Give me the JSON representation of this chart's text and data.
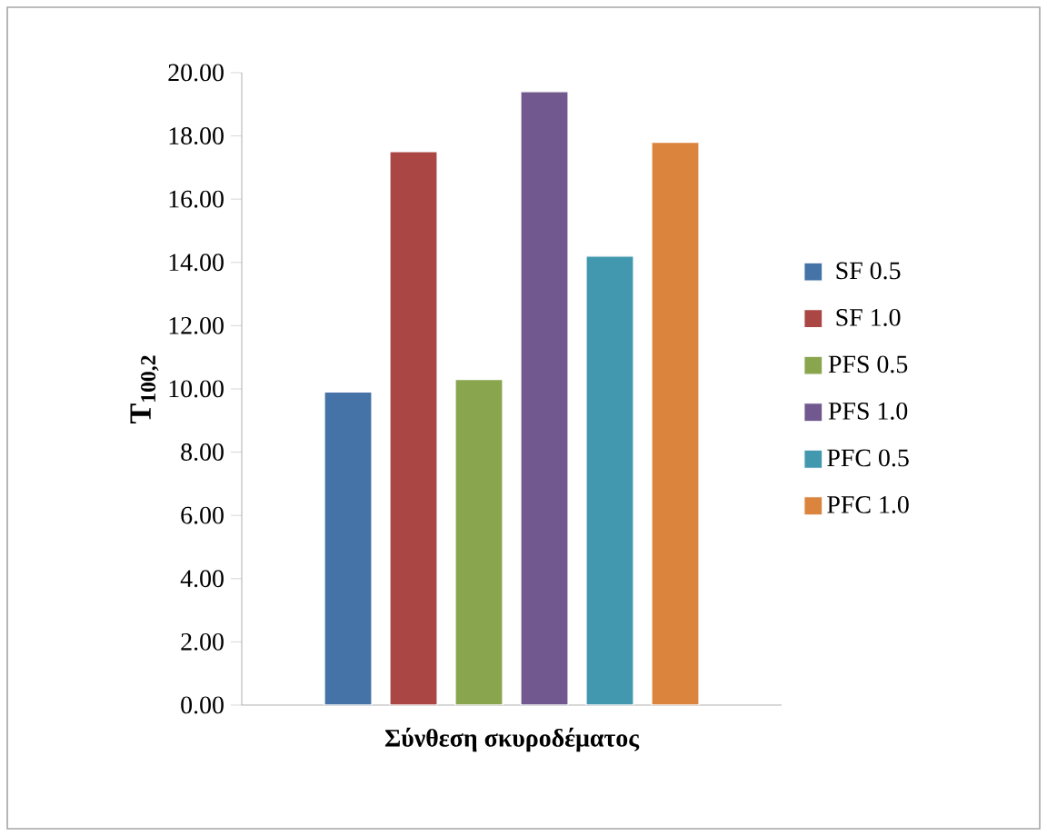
{
  "chart_data": {
    "type": "bar",
    "ylabel": "T$_{100,2}$",
    "xlabel": "Σύνθεση σκυροδέματος",
    "categories": [
      null
    ],
    "series": [
      {
        "name": "SF 0.5",
        "color": "#4572a7",
        "values": [
          9.9
        ]
      },
      {
        "name": "SF 1.0",
        "color": "#aa4643",
        "values": [
          17.5
        ]
      },
      {
        "name": "PFS 0.5",
        "color": "#89a54e",
        "values": [
          10.3
        ]
      },
      {
        "name": "PFS 1.0",
        "color": "#71588f",
        "values": [
          19.4
        ]
      },
      {
        "name": "PFC 0.5",
        "color": "#4198af",
        "values": [
          14.2
        ]
      },
      {
        "name": "PFC 1.0",
        "color": "#db843d",
        "values": [
          17.8
        ]
      }
    ],
    "ylim": [
      0,
      20
    ],
    "yticks": [
      {
        "value": 0,
        "label": "0.00"
      },
      {
        "value": 2,
        "label": "2.00"
      },
      {
        "value": 4,
        "label": "4.00"
      },
      {
        "value": 6,
        "label": "6.00"
      },
      {
        "value": 8,
        "label": "8.00"
      },
      {
        "value": 10,
        "label": "10.00"
      },
      {
        "value": 12,
        "label": "12.00"
      },
      {
        "value": 14,
        "label": "14.00"
      },
      {
        "value": 16,
        "label": "16.00"
      },
      {
        "value": 18,
        "label": "18.00"
      },
      {
        "value": 20,
        "label": "20.00"
      }
    ],
    "legend": "right",
    "grid": false
  }
}
